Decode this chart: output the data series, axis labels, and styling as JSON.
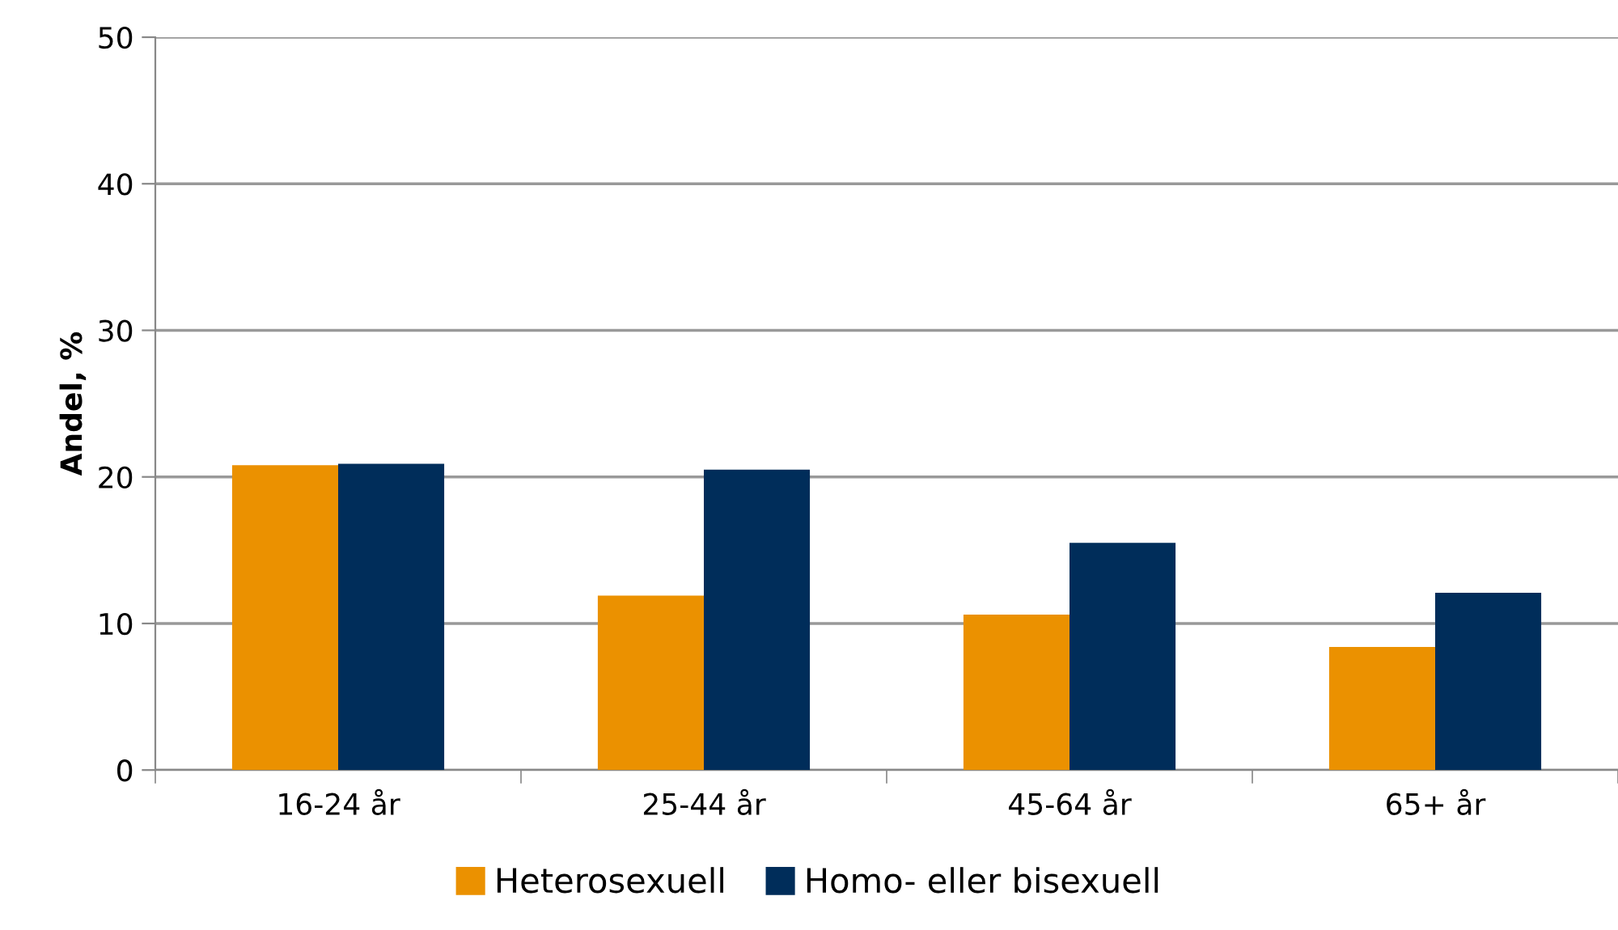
{
  "chart_data": {
    "type": "bar",
    "ylabel": "Andel, %",
    "categories": [
      "16-24 år",
      "25-44 år",
      "45-64 år",
      "65+ år"
    ],
    "series": [
      {
        "name": "Heterosexuell",
        "color": "#eb9100",
        "values": [
          20.8,
          11.9,
          10.6,
          8.4
        ]
      },
      {
        "name": "Homo- eller bisexuell",
        "color": "#002d5a",
        "values": [
          20.9,
          20.5,
          15.5,
          12.1
        ]
      }
    ],
    "ylim": [
      0,
      50
    ],
    "yticks": [
      0,
      10,
      20,
      30,
      40,
      50
    ],
    "grid": "y",
    "legend": "bottom"
  }
}
